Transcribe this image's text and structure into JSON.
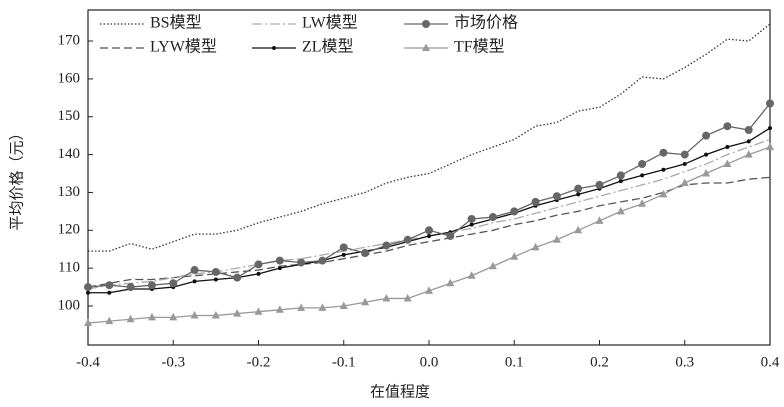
{
  "chart_data": {
    "type": "line",
    "x_label": "在值程度",
    "y_label": "平均价格（元）",
    "x": [
      -0.4,
      -0.375,
      -0.35,
      -0.325,
      -0.3,
      -0.275,
      -0.25,
      -0.225,
      -0.2,
      -0.175,
      -0.15,
      -0.125,
      -0.1,
      -0.075,
      -0.05,
      -0.025,
      0,
      0.025,
      0.05,
      0.075,
      0.1,
      0.125,
      0.15,
      0.175,
      0.2,
      0.225,
      0.25,
      0.275,
      0.3,
      0.325,
      0.35,
      0.375,
      0.4
    ],
    "xlim": [
      -0.4,
      0.4
    ],
    "xticks": [
      -0.4,
      -0.3,
      -0.2,
      -0.1,
      {
        "value": 0,
        "label": "0.0"
      },
      0.1,
      0.2,
      0.3,
      0.4
    ],
    "ylim": [
      89.7,
      178.2
    ],
    "yticks": [
      100,
      110,
      120,
      130,
      140,
      150,
      160,
      170
    ],
    "legend": "upper left",
    "series": [
      {
        "name": "BS模型",
        "color": "#333333",
        "style": "dotted",
        "marker": "none",
        "values": [
          114.5,
          114.5,
          116.5,
          115,
          117,
          119,
          119,
          120,
          122,
          123.5,
          125,
          127,
          128.5,
          130,
          132.5,
          134,
          135,
          137.5,
          140,
          142,
          144,
          147.5,
          148.5,
          151.5,
          152.5,
          156,
          160.5,
          160,
          163,
          166.5,
          170.5,
          170,
          174.5
        ]
      },
      {
        "name": "LYW模型",
        "color": "#555555",
        "style": "dashed",
        "marker": "none",
        "values": [
          105,
          106,
          107,
          107,
          107.5,
          108,
          108.5,
          109,
          109.5,
          110.5,
          111,
          111.5,
          112.5,
          113.5,
          114.5,
          116,
          117,
          118,
          119,
          120,
          121.5,
          122.5,
          124,
          125,
          126.5,
          127.5,
          128.5,
          130,
          132,
          132.5,
          132.5,
          133.5,
          134
        ]
      },
      {
        "name": "LW模型",
        "color": "#aaaaaa",
        "style": "dashdot",
        "marker": "none",
        "values": [
          104.5,
          105.5,
          106,
          106.5,
          107.5,
          108.5,
          109,
          110,
          111,
          112,
          112.5,
          113.5,
          114.5,
          115.5,
          116.5,
          117.5,
          118.5,
          119.5,
          120.5,
          122,
          123,
          124.5,
          126,
          127.5,
          129,
          130.5,
          132,
          133.5,
          135.5,
          137.5,
          140,
          142,
          144
        ]
      },
      {
        "name": "ZL模型",
        "color": "#111111",
        "style": "solid",
        "marker": "dot",
        "values": [
          103.5,
          103.5,
          104.5,
          104.5,
          105,
          106.5,
          107,
          107.5,
          108.5,
          110,
          111,
          112,
          113.5,
          114.5,
          115.5,
          117,
          118.5,
          119.5,
          121.5,
          123,
          124.5,
          126.5,
          128,
          129.5,
          131,
          133,
          134.5,
          136,
          137.5,
          140,
          142,
          143.5,
          147
        ]
      },
      {
        "name": "市场价格",
        "color": "#666666",
        "style": "solid",
        "marker": "circle",
        "values": [
          105,
          105.5,
          105,
          105.5,
          106,
          109.5,
          109,
          107.5,
          111,
          112,
          111.5,
          112,
          115.5,
          114,
          116,
          117.5,
          120,
          118.5,
          123,
          123.5,
          125,
          127.5,
          129,
          131,
          132,
          134.5,
          137.5,
          140.5,
          140,
          145,
          147.5,
          146.5,
          153.5
        ]
      },
      {
        "name": "TF模型",
        "color": "#999999",
        "style": "solid",
        "marker": "triangle",
        "values": [
          95.5,
          96,
          96.5,
          97,
          97,
          97.5,
          97.5,
          98,
          98.5,
          99,
          99.5,
          99.5,
          100,
          101,
          102,
          102,
          104,
          106,
          108,
          110.5,
          113,
          115.5,
          117.5,
          120,
          122.5,
          125,
          127,
          129.5,
          132.5,
          135,
          137.5,
          140,
          142
        ]
      }
    ]
  }
}
